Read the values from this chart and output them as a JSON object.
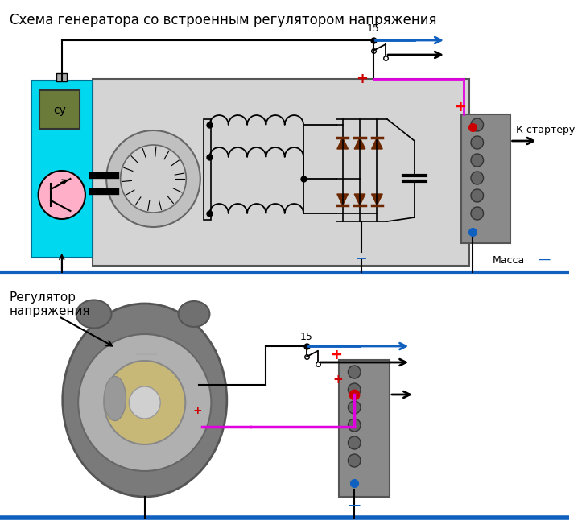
{
  "title": "Схема генератора со встроенным регулятором напряжения",
  "title_fontsize": 12,
  "bg_color": "#ffffff",
  "circuit_box_color": "#d0d0d0",
  "reg_box_color": "#00d8f0",
  "su_box_color": "#6b7c3a",
  "blue_color": "#1060c0",
  "pink_color": "#e000e0",
  "red_color": "#cc0000",
  "black_color": "#000000",
  "brown_color": "#6B2800",
  "gray_color": "#909090",
  "dark_gray": "#555555",
  "label_massa": "Масса",
  "label_k_starter": "К стартеру",
  "label_15": "15",
  "label_su": "су",
  "label_reg": "Регулятор\nнапряжения"
}
